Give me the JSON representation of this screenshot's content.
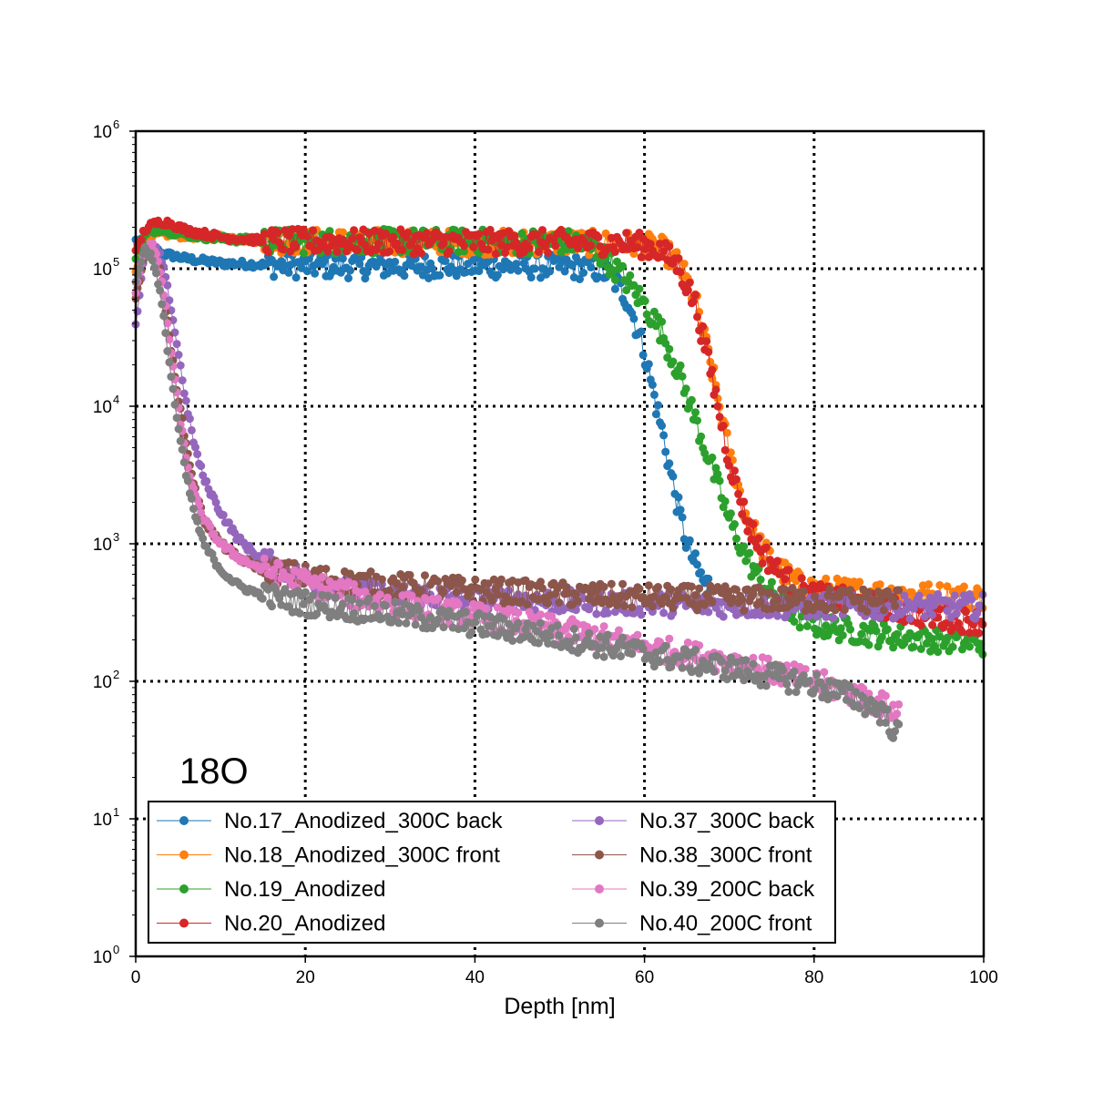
{
  "chart_data": {
    "type": "scatter",
    "xlabel": "Depth [nm]",
    "ylabel": "",
    "xlim": [
      0,
      100
    ],
    "ylim": [
      1,
      1000000
    ],
    "yscale": "log",
    "grid": true,
    "grid_style": "dotted",
    "annotation": "18O",
    "legend_placement": "lower-left",
    "x_ticks": [
      {
        "value": 0,
        "label": "0"
      },
      {
        "value": 20,
        "label": "20"
      },
      {
        "value": 40,
        "label": "40"
      },
      {
        "value": 60,
        "label": "60"
      },
      {
        "value": 80,
        "label": "80"
      },
      {
        "value": 100,
        "label": "100"
      }
    ],
    "y_ticks": [
      {
        "value": 1,
        "base": "10",
        "exp": "0"
      },
      {
        "value": 10,
        "base": "10",
        "exp": "1"
      },
      {
        "value": 100,
        "base": "10",
        "exp": "2"
      },
      {
        "value": 1000,
        "base": "10",
        "exp": "3"
      },
      {
        "value": 10000,
        "base": "10",
        "exp": "4"
      },
      {
        "value": 100000,
        "base": "10",
        "exp": "5"
      },
      {
        "value": 1000000,
        "base": "10",
        "exp": "6"
      }
    ],
    "series": [
      {
        "name": "No.17_Anodized_300C back",
        "color": "#1f77b4",
        "points": [
          [
            0,
            160000
          ],
          [
            1,
            155000
          ],
          [
            3,
            130000
          ],
          [
            6,
            118000
          ],
          [
            10,
            110000
          ],
          [
            15,
            107000
          ],
          [
            20,
            105000
          ],
          [
            30,
            104000
          ],
          [
            40,
            105000
          ],
          [
            50,
            104000
          ],
          [
            54,
            101000
          ],
          [
            56,
            90000
          ],
          [
            58,
            60000
          ],
          [
            60,
            25000
          ],
          [
            61,
            13000
          ],
          [
            62,
            7000
          ],
          [
            63,
            3500
          ],
          [
            64,
            1800
          ],
          [
            65,
            1000
          ],
          [
            66,
            700
          ],
          [
            67,
            520
          ],
          [
            68,
            500
          ]
        ]
      },
      {
        "name": "No.18_Anodized_300C front",
        "color": "#ff7f0e",
        "points": [
          [
            0,
            100000
          ],
          [
            1,
            140000
          ],
          [
            2,
            170000
          ],
          [
            3,
            180000
          ],
          [
            5,
            175000
          ],
          [
            10,
            170000
          ],
          [
            15,
            160000
          ],
          [
            20,
            158000
          ],
          [
            30,
            157000
          ],
          [
            40,
            155000
          ],
          [
            50,
            155000
          ],
          [
            55,
            153000
          ],
          [
            58,
            152000
          ],
          [
            60,
            148000
          ],
          [
            62,
            140000
          ],
          [
            64,
            110000
          ],
          [
            66,
            60000
          ],
          [
            68,
            18000
          ],
          [
            70,
            4500
          ],
          [
            72,
            1600
          ],
          [
            74,
            900
          ],
          [
            76,
            650
          ],
          [
            78,
            520
          ],
          [
            80,
            470
          ],
          [
            85,
            450
          ],
          [
            90,
            430
          ],
          [
            95,
            420
          ],
          [
            100,
            410
          ]
        ]
      },
      {
        "name": "No.19_Anodized",
        "color": "#2ca02c",
        "points": [
          [
            0,
            120000
          ],
          [
            1,
            170000
          ],
          [
            2,
            190000
          ],
          [
            3,
            195000
          ],
          [
            5,
            180000
          ],
          [
            10,
            165000
          ],
          [
            15,
            160000
          ],
          [
            20,
            158000
          ],
          [
            30,
            158000
          ],
          [
            40,
            158000
          ],
          [
            50,
            157000
          ],
          [
            52,
            155000
          ],
          [
            54,
            140000
          ],
          [
            56,
            110000
          ],
          [
            58,
            80000
          ],
          [
            60,
            55000
          ],
          [
            62,
            35000
          ],
          [
            64,
            18000
          ],
          [
            66,
            8000
          ],
          [
            68,
            3500
          ],
          [
            70,
            1500
          ],
          [
            72,
            800
          ],
          [
            74,
            500
          ],
          [
            76,
            380
          ],
          [
            78,
            300
          ],
          [
            80,
            260
          ],
          [
            85,
            230
          ],
          [
            90,
            210
          ],
          [
            95,
            200
          ],
          [
            100,
            190
          ]
        ]
      },
      {
        "name": "No.20_Anodized",
        "color": "#d62728",
        "points": [
          [
            0,
            130000
          ],
          [
            1,
            190000
          ],
          [
            2,
            210000
          ],
          [
            3,
            220000
          ],
          [
            4,
            215000
          ],
          [
            6,
            190000
          ],
          [
            10,
            170000
          ],
          [
            15,
            160000
          ],
          [
            20,
            158000
          ],
          [
            30,
            157000
          ],
          [
            40,
            156000
          ],
          [
            50,
            156000
          ],
          [
            55,
            155000
          ],
          [
            58,
            153000
          ],
          [
            60,
            148000
          ],
          [
            62,
            135000
          ],
          [
            64,
            105000
          ],
          [
            66,
            55000
          ],
          [
            68,
            16000
          ],
          [
            70,
            4000
          ],
          [
            72,
            1500
          ],
          [
            74,
            850
          ],
          [
            76,
            600
          ],
          [
            78,
            480
          ],
          [
            80,
            420
          ],
          [
            85,
            380
          ],
          [
            90,
            330
          ],
          [
            95,
            290
          ],
          [
            100,
            270
          ]
        ]
      },
      {
        "name": "No.37_300C back",
        "color": "#9467bd",
        "points": [
          [
            0,
            40000
          ],
          [
            1,
            120000
          ],
          [
            2,
            150000
          ],
          [
            3,
            120000
          ],
          [
            4,
            60000
          ],
          [
            5,
            25000
          ],
          [
            6,
            10000
          ],
          [
            7,
            5000
          ],
          [
            8,
            3000
          ],
          [
            10,
            1700
          ],
          [
            12,
            1100
          ],
          [
            15,
            750
          ],
          [
            20,
            550
          ],
          [
            25,
            470
          ],
          [
            30,
            430
          ],
          [
            40,
            400
          ],
          [
            50,
            380
          ],
          [
            60,
            370
          ],
          [
            70,
            360
          ],
          [
            80,
            350
          ],
          [
            90,
            350
          ],
          [
            100,
            350
          ]
        ]
      },
      {
        "name": "No.38_300C front",
        "color": "#8c564b",
        "points": [
          [
            0,
            60000
          ],
          [
            1,
            130000
          ],
          [
            2,
            140000
          ],
          [
            3,
            90000
          ],
          [
            4,
            30000
          ],
          [
            5,
            12000
          ],
          [
            6,
            5000
          ],
          [
            7,
            2500
          ],
          [
            8,
            1500
          ],
          [
            10,
            1000
          ],
          [
            12,
            800
          ],
          [
            15,
            650
          ],
          [
            20,
            580
          ],
          [
            25,
            530
          ],
          [
            30,
            500
          ],
          [
            40,
            460
          ],
          [
            50,
            430
          ],
          [
            60,
            410
          ],
          [
            70,
            400
          ],
          [
            80,
            390
          ],
          [
            90,
            390
          ]
        ]
      },
      {
        "name": "No.39_200C back",
        "color": "#e377c2",
        "points": [
          [
            0,
            70000
          ],
          [
            1,
            140000
          ],
          [
            2,
            150000
          ],
          [
            3,
            90000
          ],
          [
            4,
            30000
          ],
          [
            5,
            10000
          ],
          [
            6,
            4000
          ],
          [
            7,
            2200
          ],
          [
            8,
            1500
          ],
          [
            10,
            1000
          ],
          [
            12,
            800
          ],
          [
            15,
            650
          ],
          [
            20,
            520
          ],
          [
            25,
            430
          ],
          [
            30,
            370
          ],
          [
            40,
            300
          ],
          [
            50,
            240
          ],
          [
            60,
            180
          ],
          [
            70,
            140
          ],
          [
            80,
            100
          ],
          [
            85,
            80
          ],
          [
            90,
            60
          ]
        ]
      },
      {
        "name": "No.40_200C front",
        "color": "#7f7f7f",
        "points": [
          [
            0,
            80000
          ],
          [
            1,
            140000
          ],
          [
            2,
            120000
          ],
          [
            3,
            60000
          ],
          [
            4,
            20000
          ],
          [
            5,
            7000
          ],
          [
            6,
            3000
          ],
          [
            7,
            1600
          ],
          [
            8,
            1000
          ],
          [
            10,
            650
          ],
          [
            12,
            500
          ],
          [
            15,
            420
          ],
          [
            20,
            370
          ],
          [
            25,
            340
          ],
          [
            30,
            310
          ],
          [
            40,
            260
          ],
          [
            50,
            210
          ],
          [
            60,
            160
          ],
          [
            70,
            125
          ],
          [
            80,
            95
          ],
          [
            85,
            75
          ],
          [
            88,
            60
          ],
          [
            90,
            40
          ]
        ]
      }
    ]
  }
}
